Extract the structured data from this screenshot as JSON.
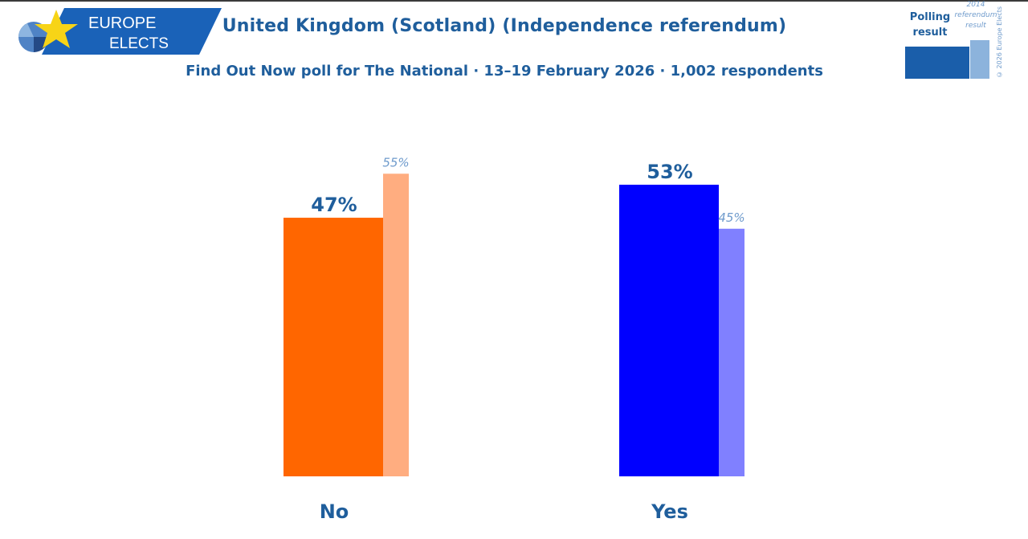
{
  "header": {
    "brand_line1": "EUROPE",
    "brand_line2": "ELECTS",
    "title": "United Kingdom (Scotland) (Independence referendum)",
    "subtitle": "Find Out Now poll for The National · 13–19 February 2026 · 1,002 respondents"
  },
  "legend": {
    "polling_label": "Polling result",
    "reference_label": "2014 referendum result",
    "copyright": "© 2026 Europe Elects"
  },
  "colors": {
    "title": "#1f5e9c",
    "no_poll": "#ff6600",
    "no_reference": "#ffad80",
    "yes_poll": "#0000ff",
    "yes_reference": "#8080ff",
    "legend_poll": "#1a5eaa",
    "legend_reference": "#8cb3dc"
  },
  "chart_data": {
    "type": "bar",
    "title": "United Kingdom (Scotland) (Independence referendum)",
    "categories": [
      "No",
      "Yes"
    ],
    "series": [
      {
        "name": "Polling result",
        "values": [
          47,
          53
        ],
        "labels": [
          "47%",
          "53%"
        ]
      },
      {
        "name": "2014 referendum result",
        "values": [
          55,
          45
        ],
        "labels": [
          "55%",
          "45%"
        ]
      }
    ],
    "ylim": [
      0,
      60
    ],
    "grid": false
  }
}
